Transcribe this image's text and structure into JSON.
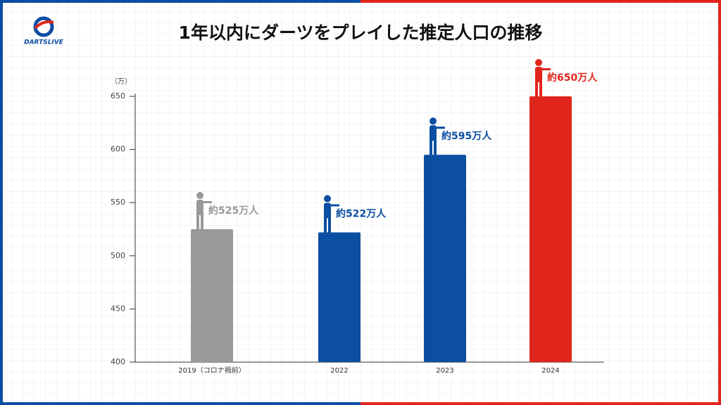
{
  "brand": "DARTSLIVE",
  "chart_data": {
    "type": "bar",
    "title": "1年以内にダーツをプレイした推定人口の推移",
    "y_unit": "（万）",
    "categories": [
      "2019（コロナ禍前）",
      "2022",
      "2023",
      "2024"
    ],
    "values": [
      525,
      522,
      595,
      650
    ],
    "value_labels": [
      "約525万人",
      "約522万人",
      "約595万人",
      "約650万人"
    ],
    "colors": [
      "#999999",
      "#0b4ea2",
      "#0b4ea2",
      "#e0261c"
    ],
    "ylim": [
      400,
      650
    ],
    "yticks": [
      400,
      450,
      500,
      550,
      600,
      650
    ],
    "grid": false
  }
}
